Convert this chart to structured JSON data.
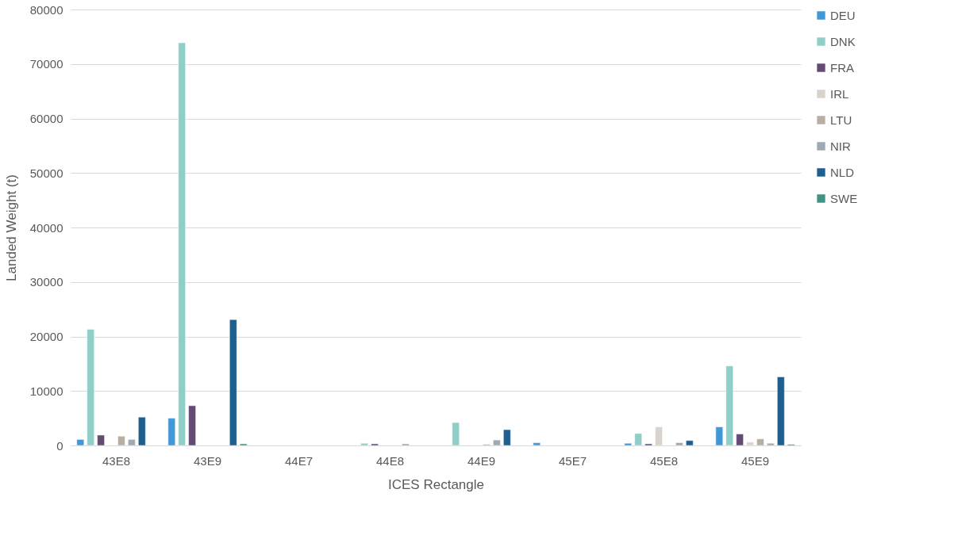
{
  "chart_data": {
    "type": "bar",
    "xlabel": "ICES Rectangle",
    "ylabel": "Landed Weight (t)",
    "categories": [
      "43E8",
      "43E9",
      "44E7",
      "44E8",
      "44E9",
      "45E7",
      "45E8",
      "45E9"
    ],
    "series": [
      {
        "name": "DEU",
        "color": "#4198d7",
        "values": [
          1100,
          5000,
          null,
          null,
          null,
          500,
          400,
          3400
        ]
      },
      {
        "name": "DNK",
        "color": "#90cfc8",
        "values": [
          21300,
          73900,
          null,
          400,
          4200,
          null,
          2200,
          14600
        ]
      },
      {
        "name": "FRA",
        "color": "#634b76",
        "values": [
          1900,
          7300,
          null,
          300,
          null,
          null,
          300,
          2100
        ]
      },
      {
        "name": "IRL",
        "color": "#d9d3cc",
        "values": [
          null,
          null,
          null,
          null,
          null,
          null,
          3400,
          600
        ]
      },
      {
        "name": "LTU",
        "color": "#b8aea4",
        "values": [
          1700,
          null,
          null,
          null,
          200,
          null,
          null,
          1200
        ]
      },
      {
        "name": "NIR",
        "color": "#9ea9b3",
        "values": [
          1100,
          null,
          null,
          300,
          1000,
          null,
          500,
          400
        ]
      },
      {
        "name": "NLD",
        "color": "#1f5f8e",
        "values": [
          5200,
          23100,
          null,
          null,
          2900,
          null,
          900,
          12600
        ]
      },
      {
        "name": "SWE",
        "color": "#3f9488",
        "values": [
          null,
          300,
          null,
          null,
          null,
          null,
          null,
          200
        ]
      }
    ],
    "ylim": [
      0,
      80000
    ],
    "yticks": [
      0,
      10000,
      20000,
      30000,
      40000,
      50000,
      60000,
      70000,
      80000
    ],
    "grid": "y",
    "legend": "right"
  }
}
